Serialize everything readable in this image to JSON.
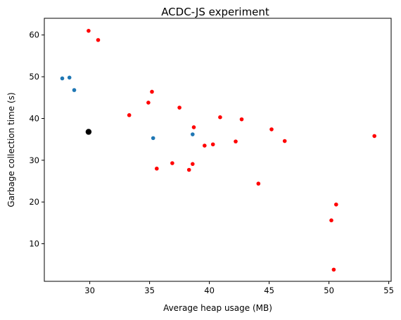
{
  "chart_data": {
    "type": "scatter",
    "title": "ACDC-JS experiment",
    "xlabel": "Average heap usage (MB)",
    "ylabel": "Garbage collection time (s)",
    "xlim": [
      26.2,
      55.2
    ],
    "ylim": [
      1.0,
      64.0
    ],
    "xticks": [
      30,
      35,
      40,
      45,
      50,
      55
    ],
    "yticks": [
      10,
      20,
      30,
      40,
      50,
      60
    ],
    "grid": false,
    "series": [
      {
        "color": "#ff0000",
        "marker_size": "small",
        "points": [
          {
            "x": 29.9,
            "y": 61.0
          },
          {
            "x": 30.7,
            "y": 58.8
          },
          {
            "x": 33.3,
            "y": 40.8
          },
          {
            "x": 34.9,
            "y": 43.8
          },
          {
            "x": 35.2,
            "y": 46.4
          },
          {
            "x": 37.5,
            "y": 42.6
          },
          {
            "x": 38.7,
            "y": 37.9
          },
          {
            "x": 35.6,
            "y": 28.0
          },
          {
            "x": 36.9,
            "y": 29.3
          },
          {
            "x": 38.3,
            "y": 27.7
          },
          {
            "x": 38.6,
            "y": 29.1
          },
          {
            "x": 39.6,
            "y": 33.5
          },
          {
            "x": 40.3,
            "y": 33.8
          },
          {
            "x": 40.9,
            "y": 40.3
          },
          {
            "x": 42.2,
            "y": 34.5
          },
          {
            "x": 42.7,
            "y": 39.8
          },
          {
            "x": 44.1,
            "y": 24.4
          },
          {
            "x": 45.2,
            "y": 37.4
          },
          {
            "x": 46.3,
            "y": 34.6
          },
          {
            "x": 50.2,
            "y": 15.6
          },
          {
            "x": 50.6,
            "y": 19.4
          },
          {
            "x": 50.4,
            "y": 3.8
          },
          {
            "x": 53.8,
            "y": 35.8
          }
        ]
      },
      {
        "color": "#1f77b4",
        "marker_size": "small",
        "points": [
          {
            "x": 27.7,
            "y": 49.6
          },
          {
            "x": 28.3,
            "y": 49.8
          },
          {
            "x": 28.7,
            "y": 46.8
          },
          {
            "x": 35.3,
            "y": 35.3
          },
          {
            "x": 38.6,
            "y": 36.2
          }
        ]
      },
      {
        "color": "#000000",
        "marker_size": "large",
        "points": [
          {
            "x": 29.9,
            "y": 36.8
          }
        ]
      }
    ]
  }
}
